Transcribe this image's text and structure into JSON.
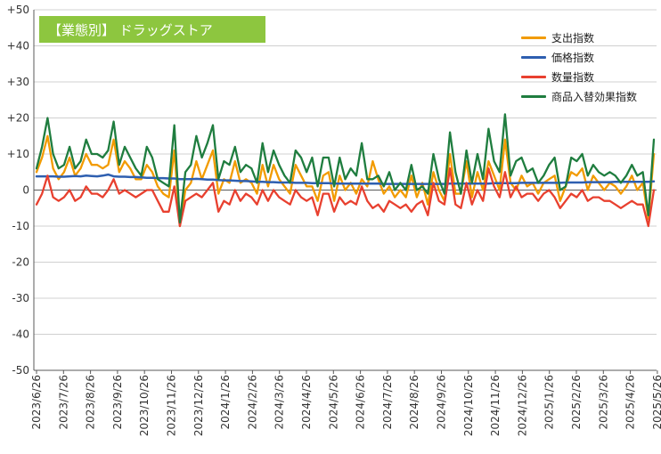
{
  "title": "【業態別】 ドラッグストア",
  "colors": {
    "title_bg": "#8dc63f",
    "axis": "#595959",
    "grid": "#d0d0d0"
  },
  "legend": [
    {
      "label": "支出指数",
      "color": "#f29b00"
    },
    {
      "label": "価格指数",
      "color": "#2e5fb0"
    },
    {
      "label": "数量指数",
      "color": "#e8402f"
    },
    {
      "label": "商品入替効果指数",
      "color": "#1f7d3f"
    }
  ],
  "chart_data": {
    "type": "line",
    "title": "【業態別】 ドラッグストア",
    "ylim": [
      -50,
      50
    ],
    "yticks": [
      "+50",
      "+40",
      "+30",
      "+20",
      "+10",
      "0",
      "-10",
      "-20",
      "-30",
      "-40",
      "-50"
    ],
    "x_tick_labels": [
      "2023/6/26",
      "2023/7/26",
      "2023/8/26",
      "2023/9/26",
      "2023/10/26",
      "2023/11/26",
      "2023/12/26",
      "2024/1/26",
      "2024/2/26",
      "2024/3/26",
      "2024/4/26",
      "2024/5/26",
      "2024/6/26",
      "2024/7/26",
      "2024/8/26",
      "2024/9/26",
      "2024/10/26",
      "2024/11/26",
      "2024/12/26",
      "2025/1/26",
      "2025/2/26",
      "2025/3/26",
      "2025/4/26",
      "2025/5/26"
    ],
    "grid": true,
    "legend_position": "top-right",
    "series": [
      {
        "name": "支出指数",
        "color": "#f29b00",
        "values": [
          5,
          9,
          15,
          6,
          3,
          5,
          9,
          4,
          6,
          10,
          7,
          7,
          6,
          7,
          14,
          5,
          8,
          6,
          3,
          3,
          7,
          5,
          1,
          -1,
          -2,
          11,
          -10,
          0,
          2,
          8,
          3,
          7,
          11,
          -1,
          3,
          2,
          8,
          2,
          3,
          2,
          -1,
          7,
          1,
          7,
          3,
          1,
          -1,
          7,
          4,
          1,
          1,
          -3,
          4,
          5,
          -3,
          4,
          0,
          2,
          -1,
          3,
          1,
          8,
          3,
          -1,
          1,
          -2,
          0,
          -2,
          4,
          -2,
          2,
          -4,
          5,
          0,
          -3,
          10,
          -1,
          -1,
          8,
          -2,
          5,
          0,
          8,
          4,
          0,
          14,
          2,
          0,
          4,
          1,
          2,
          -1,
          2,
          3,
          4,
          -3,
          1,
          5,
          4,
          6,
          0,
          4,
          2,
          0,
          2,
          1,
          -1,
          1,
          4,
          0,
          2,
          -8,
          10
        ]
      },
      {
        "name": "価格指数",
        "color": "#2e5fb0",
        "values": [
          3.8,
          3.8,
          3.8,
          3.8,
          3.7,
          3.7,
          3.8,
          3.9,
          3.8,
          4.0,
          3.9,
          3.8,
          4.0,
          4.3,
          3.8,
          3.7,
          3.7,
          3.6,
          3.6,
          3.5,
          3.4,
          3.4,
          3.3,
          3.3,
          3.2,
          3.2,
          3.0,
          3.0,
          3.0,
          3.1,
          3.0,
          2.9,
          2.9,
          2.8,
          2.7,
          2.7,
          2.6,
          2.5,
          2.5,
          2.4,
          2.3,
          2.3,
          2.2,
          2.2,
          2.1,
          2.1,
          2.1,
          2.0,
          2.0,
          2.0,
          1.9,
          1.9,
          1.9,
          1.9,
          1.8,
          1.8,
          1.8,
          1.8,
          1.8,
          1.8,
          1.8,
          1.8,
          1.8,
          1.7,
          1.7,
          1.7,
          1.7,
          1.7,
          1.7,
          1.7,
          1.7,
          1.7,
          1.7,
          1.7,
          1.7,
          1.8,
          1.8,
          1.8,
          1.8,
          1.8,
          1.8,
          1.8,
          1.8,
          1.9,
          1.9,
          1.9,
          1.9,
          1.9,
          2.0,
          2.0,
          2.0,
          2.0,
          2.0,
          2.0,
          2.0,
          2.0,
          2.1,
          2.1,
          2.1,
          2.1,
          2.2,
          2.2,
          2.2,
          2.2,
          2.2,
          2.3,
          2.3,
          2.3,
          2.3,
          2.3,
          2.3,
          2.3,
          2.4
        ]
      },
      {
        "name": "数量指数",
        "color": "#e8402f",
        "values": [
          -4,
          -1,
          4,
          -2,
          -3,
          -2,
          0,
          -3,
          -2,
          1,
          -1,
          -1,
          -2,
          0,
          3,
          -1,
          0,
          -1,
          -2,
          -1,
          0,
          0,
          -3,
          -6,
          -6,
          1,
          -10,
          -3,
          -2,
          -1,
          -2,
          0,
          2,
          -6,
          -3,
          -4,
          0,
          -3,
          -1,
          -2,
          -4,
          0,
          -3,
          0,
          -2,
          -3,
          -4,
          0,
          -2,
          -3,
          -2,
          -7,
          -1,
          -1,
          -6,
          -2,
          -4,
          -3,
          -4,
          1,
          -3,
          -5,
          -4,
          -6,
          -3,
          -4,
          -5,
          -4,
          -6,
          -4,
          -3,
          -7,
          2,
          -3,
          -4,
          6,
          -4,
          -5,
          2,
          -4,
          0,
          -3,
          6,
          1,
          -2,
          5,
          -2,
          1,
          -2,
          -1,
          -1,
          -3,
          -1,
          0,
          -2,
          -5,
          -3,
          -1,
          -2,
          0,
          -3,
          -2,
          -2,
          -3,
          -3,
          -4,
          -5,
          -4,
          -3,
          -4,
          -4,
          -10,
          0
        ]
      },
      {
        "name": "商品入替効果指数",
        "color": "#1f7d3f",
        "values": [
          6,
          12,
          20,
          10,
          6,
          7,
          12,
          6,
          8,
          14,
          10,
          10,
          9,
          11,
          19,
          7,
          12,
          9,
          6,
          4,
          12,
          9,
          3,
          2,
          1,
          18,
          -9,
          5,
          7,
          15,
          9,
          13,
          18,
          3,
          8,
          7,
          12,
          5,
          7,
          6,
          2,
          13,
          5,
          11,
          7,
          4,
          2,
          11,
          9,
          5,
          9,
          1,
          9,
          9,
          1,
          9,
          3,
          6,
          4,
          13,
          3,
          3,
          4,
          1,
          5,
          0,
          2,
          0,
          7,
          0,
          1,
          -1,
          10,
          3,
          -1,
          16,
          5,
          -1,
          11,
          2,
          10,
          3,
          17,
          8,
          5,
          21,
          4,
          8,
          9,
          5,
          6,
          2,
          4,
          7,
          9,
          0,
          1,
          9,
          8,
          10,
          4,
          7,
          5,
          4,
          5,
          4,
          2,
          4,
          7,
          4,
          5,
          -7,
          14
        ]
      }
    ]
  }
}
